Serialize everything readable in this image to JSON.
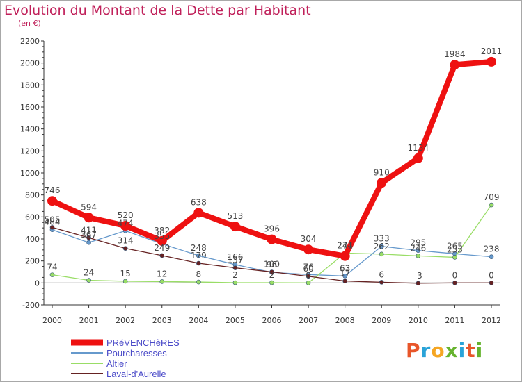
{
  "title": "Evolution du Montant de la Dette par Habitant",
  "subtitle": "(en €)",
  "logo": {
    "text": "Proxiti",
    "colors": [
      "#e8562a",
      "#2aa3d8",
      "#f5a623",
      "#66b32e",
      "#2aa3d8",
      "#e8562a",
      "#66b32e"
    ]
  },
  "colors": {
    "title": "#c0205a",
    "axis": "#333333",
    "label": "#444444"
  },
  "chart_data": {
    "type": "line",
    "x": [
      "2000",
      "2001",
      "2002",
      "2003",
      "2004",
      "2005",
      "2006",
      "2007",
      "2008",
      "2009",
      "2010",
      "2011",
      "2012"
    ],
    "ylim": [
      -200,
      2200
    ],
    "yticks": [
      -200,
      0,
      200,
      400,
      600,
      800,
      1000,
      1200,
      1400,
      1600,
      1800,
      2000,
      2200
    ],
    "grid": false,
    "legend_position": "bottom-left",
    "series": [
      {
        "name": "PRéVENCHèRES",
        "color": "#ee1111",
        "width": 8,
        "marker": 7,
        "values": [
          746,
          594,
          520,
          382,
          638,
          513,
          396,
          304,
          244,
          910,
          1134,
          1984,
          2011
        ],
        "labels": [
          "746",
          "594",
          "520",
          "382",
          "638",
          "513",
          "396",
          "304",
          "244",
          "910",
          "1134",
          "1984",
          "2011"
        ]
      },
      {
        "name": "Pourcharesses",
        "color": "#6699cc",
        "width": 1.3,
        "marker": 3,
        "values": [
          484,
          367,
          474,
          355,
          248,
          166,
          96,
          76,
          63,
          333,
          295,
          265,
          238
        ],
        "labels": [
          "484",
          "367",
          "474",
          "355",
          "248",
          "166",
          "96",
          "76",
          "63",
          "333",
          "295",
          "265",
          "238"
        ]
      },
      {
        "name": "Altier",
        "color": "#99dd66",
        "width": 1.3,
        "marker": 3,
        "values": [
          74,
          24,
          15,
          12,
          8,
          2,
          2,
          0,
          271,
          262,
          246,
          233,
          709
        ],
        "labels": [
          "74",
          "24",
          "15",
          "12",
          "8",
          "2",
          "2",
          "0",
          "271",
          "262",
          "246",
          "233",
          "709"
        ]
      },
      {
        "name": "Laval-d'Aurelle",
        "color": "#662222",
        "width": 1.3,
        "marker": 3,
        "values": [
          505,
          411,
          314,
          249,
          179,
          137,
          100,
          60,
          17,
          6,
          -3,
          0,
          0
        ],
        "labels": [
          "505",
          "411",
          "314",
          "249",
          "179",
          "137",
          "100",
          "60",
          "17",
          "6",
          "-3",
          "0",
          "0"
        ]
      }
    ]
  }
}
